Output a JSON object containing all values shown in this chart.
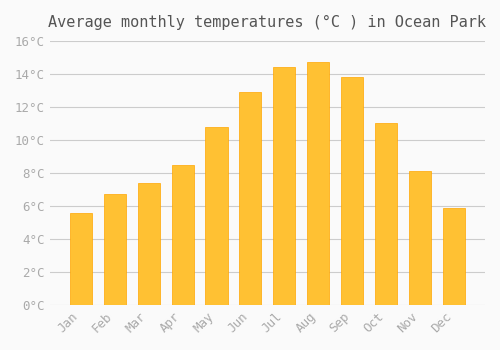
{
  "title": "Average monthly temperatures (°C ) in Ocean Park",
  "months": [
    "Jan",
    "Feb",
    "Mar",
    "Apr",
    "May",
    "Jun",
    "Jul",
    "Aug",
    "Sep",
    "Oct",
    "Nov",
    "Dec"
  ],
  "values": [
    5.6,
    6.7,
    7.4,
    8.5,
    10.8,
    12.9,
    14.4,
    14.7,
    13.8,
    11.0,
    8.1,
    5.9
  ],
  "bar_color": "#FFC133",
  "bar_edge_color": "#FFA500",
  "background_color": "#FAFAFA",
  "grid_color": "#CCCCCC",
  "text_color": "#AAAAAA",
  "ylim": [
    0,
    16
  ],
  "ytick_step": 2,
  "title_fontsize": 11,
  "tick_fontsize": 9
}
